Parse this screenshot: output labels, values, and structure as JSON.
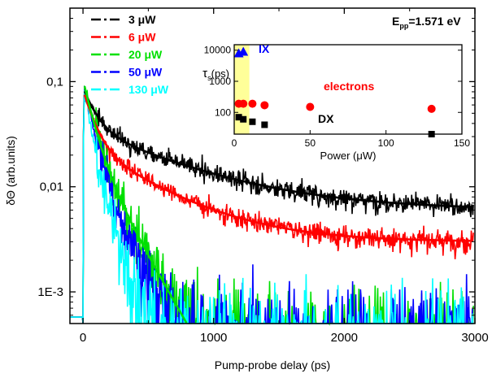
{
  "chart_data": {
    "type": "line",
    "main": {
      "xlabel": "Pump-probe delay (ps)",
      "ylabel": "δΘ (arb.units)",
      "x_ticks": [
        "0",
        "1000",
        "2000",
        "3000"
      ],
      "x_tick_values": [
        0,
        1000,
        2000,
        3000
      ],
      "y_ticks": [
        "1E-3",
        "0,01",
        "0,1"
      ],
      "y_tick_values": [
        0.001,
        0.01,
        0.1
      ],
      "xlim": [
        -100,
        3000
      ],
      "ylim": [
        0.0005,
        0.5
      ],
      "yscale": "log",
      "annotation": "E",
      "annotation_sub": "pp",
      "annotation_value": "=1.571 eV",
      "series": [
        {
          "name": "3 μW",
          "color": "#000000",
          "peak": 0.1,
          "fast_amp": 0.045,
          "fast_tau": 90,
          "slow_amp": 0.03,
          "slow_tau": 700,
          "offset": 0.006,
          "noise": 0.18,
          "fit": true
        },
        {
          "name": "6 μW",
          "color": "#ff0000",
          "peak": 0.1,
          "fast_amp": 0.05,
          "fast_tau": 80,
          "slow_amp": 0.022,
          "slow_tau": 500,
          "offset": 0.003,
          "noise": 0.16,
          "fit": true
        },
        {
          "name": "20 μW",
          "color": "#00e000",
          "peak": 0.095,
          "fast_amp": 0.065,
          "fast_tau": 70,
          "slow_amp": 0.025,
          "slow_tau": 200,
          "offset": 0.0,
          "noise": 0.35,
          "fit": true
        },
        {
          "name": "50 μW",
          "color": "#0000ff",
          "peak": 0.09,
          "fast_amp": 0.065,
          "fast_tau": 60,
          "slow_amp": 0.022,
          "slow_tau": 170,
          "offset": 0.0,
          "noise": 0.45,
          "fit": false
        },
        {
          "name": "130 μW",
          "color": "#00ffff",
          "peak": 0.085,
          "fast_amp": 0.06,
          "fast_tau": 50,
          "slow_amp": 0.022,
          "slow_tau": 120,
          "offset": 0.0,
          "noise": 0.5,
          "fit": false
        }
      ]
    },
    "inset": {
      "type": "scatter",
      "xlabel": "Power (μW)",
      "ylabel_symbol": "τ",
      "ylabel_sub": "s",
      "ylabel_rest": "(ps)",
      "xlim": [
        0,
        150
      ],
      "ylim": [
        20,
        15000
      ],
      "yscale": "log",
      "x_ticks": [
        "0",
        "50",
        "100",
        "150"
      ],
      "x_tick_values": [
        0,
        50,
        100,
        150
      ],
      "y_ticks": [
        "100",
        "1000",
        "10000"
      ],
      "y_tick_values": [
        100,
        1000,
        10000
      ],
      "highlight_range": [
        0,
        10
      ],
      "highlight_color": "#ffff99",
      "series": [
        {
          "name": "IX",
          "color": "#0000ff",
          "marker": "triangle",
          "points": [
            [
              3,
              8000
            ],
            [
              6,
              9000
            ]
          ]
        },
        {
          "name": "electrons",
          "color": "#ff0000",
          "marker": "circle",
          "points": [
            [
              3,
              190
            ],
            [
              6,
              190
            ],
            [
              12,
              190
            ],
            [
              20,
              170
            ],
            [
              50,
              150
            ],
            [
              130,
              130
            ]
          ]
        },
        {
          "name": "DX",
          "color": "#000000",
          "marker": "square",
          "points": [
            [
              3,
              70
            ],
            [
              6,
              60
            ],
            [
              12,
              50
            ],
            [
              20,
              40
            ],
            [
              130,
              20
            ]
          ]
        }
      ],
      "labels": [
        {
          "text": "IX",
          "color": "#0000ff"
        },
        {
          "text": "electrons",
          "color": "#ff0000"
        },
        {
          "text": "DX",
          "color": "#000000"
        }
      ]
    }
  }
}
